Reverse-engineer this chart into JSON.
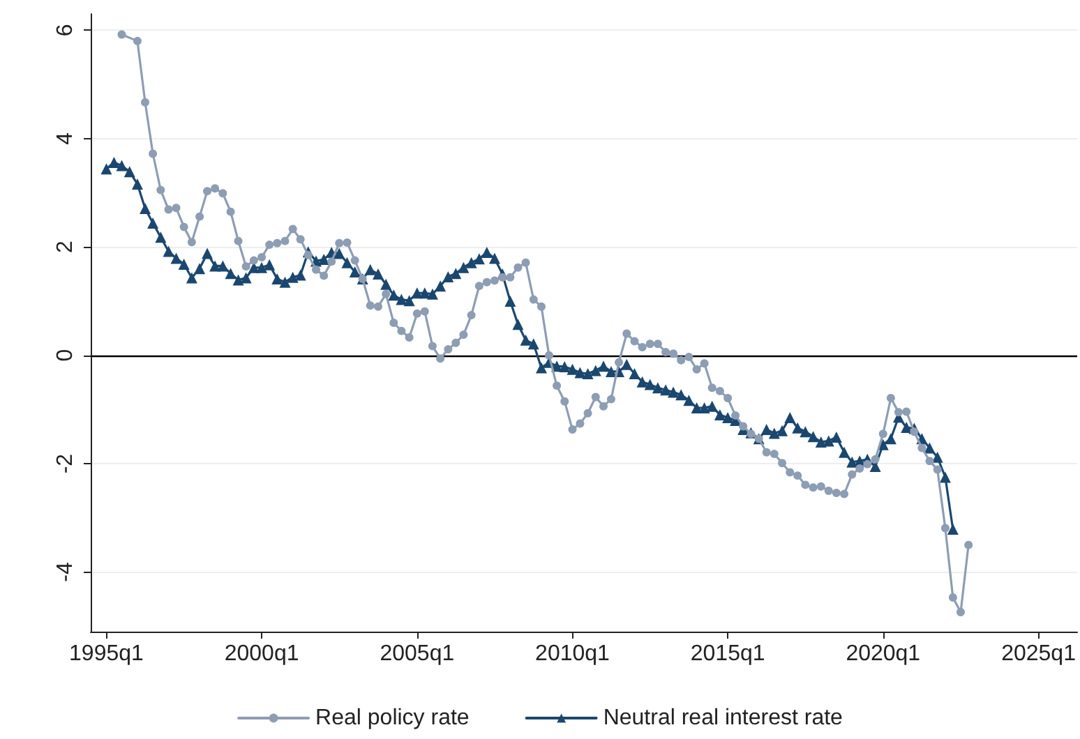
{
  "chart_data": {
    "type": "line",
    "xlim": [
      "1994-07",
      "2026-04"
    ],
    "ylim": [
      -5.1,
      6.3
    ],
    "xticks": [
      {
        "value": "1995-01",
        "label": "1995q1"
      },
      {
        "value": "2000-01",
        "label": "2000q1"
      },
      {
        "value": "2005-01",
        "label": "2005q1"
      },
      {
        "value": "2010-01",
        "label": "2010q1"
      },
      {
        "value": "2015-01",
        "label": "2015q1"
      },
      {
        "value": "2020-01",
        "label": "2020q1"
      },
      {
        "value": "2025-01",
        "label": "2025q1"
      }
    ],
    "yticks": [
      -4,
      -2,
      0,
      2,
      4,
      6
    ],
    "grid": "y",
    "legend": "bottom",
    "ref_lines": [
      {
        "axis": "y",
        "value": 0,
        "color": "#000000"
      }
    ],
    "series": [
      {
        "name": "Real policy rate",
        "color": "#8d9db3",
        "marker": "circle",
        "x": [
          "1995-07",
          "1996-01",
          "1996-04",
          "1996-07",
          "1996-10",
          "1997-01",
          "1997-04",
          "1997-07",
          "1997-10",
          "1998-01",
          "1998-04",
          "1998-07",
          "1998-10",
          "1999-01",
          "1999-04",
          "1999-07",
          "1999-10",
          "2000-01",
          "2000-04",
          "2000-07",
          "2000-10",
          "2001-01",
          "2001-04",
          "2001-07",
          "2001-10",
          "2002-01",
          "2002-04",
          "2002-07",
          "2002-10",
          "2003-01",
          "2003-04",
          "2003-07",
          "2003-10",
          "2004-01",
          "2004-04",
          "2004-07",
          "2004-10",
          "2005-01",
          "2005-04",
          "2005-07",
          "2005-10",
          "2006-01",
          "2006-04",
          "2006-07",
          "2006-10",
          "2007-01",
          "2007-04",
          "2007-07",
          "2007-10",
          "2008-01",
          "2008-04",
          "2008-07",
          "2008-10",
          "2009-01",
          "2009-04",
          "2009-07",
          "2009-10",
          "2010-01",
          "2010-04",
          "2010-07",
          "2010-10",
          "2011-01",
          "2011-04",
          "2011-07",
          "2011-10",
          "2012-01",
          "2012-04",
          "2012-07",
          "2012-10",
          "2013-01",
          "2013-04",
          "2013-07",
          "2013-10",
          "2014-01",
          "2014-04",
          "2014-07",
          "2014-10",
          "2015-01",
          "2015-04",
          "2015-07",
          "2015-10",
          "2016-01",
          "2016-04",
          "2016-07",
          "2016-10",
          "2017-01",
          "2017-04",
          "2017-07",
          "2017-10",
          "2018-01",
          "2018-04",
          "2018-07",
          "2018-10",
          "2019-01",
          "2019-04",
          "2019-07",
          "2019-10",
          "2020-01",
          "2020-04",
          "2020-07",
          "2020-10",
          "2021-01",
          "2021-04",
          "2021-07",
          "2021-10",
          "2022-01",
          "2022-04",
          "2022-07",
          "2022-10"
        ],
        "values": [
          5.92,
          5.8,
          4.67,
          3.72,
          3.05,
          2.69,
          2.72,
          2.37,
          2.09,
          2.56,
          3.03,
          3.08,
          2.99,
          2.65,
          2.11,
          1.64,
          1.75,
          1.81,
          2.04,
          2.07,
          2.11,
          2.33,
          2.14,
          1.85,
          1.58,
          1.47,
          1.73,
          2.07,
          2.08,
          1.75,
          1.41,
          0.92,
          0.9,
          1.13,
          0.6,
          0.45,
          0.33,
          0.77,
          0.81,
          0.17,
          -0.06,
          0.11,
          0.23,
          0.38,
          0.74,
          1.28,
          1.35,
          1.38,
          1.44,
          1.44,
          1.62,
          1.71,
          1.03,
          0.9,
          0,
          -0.56,
          -0.85,
          -1.37,
          -1.26,
          -1.07,
          -0.77,
          -0.94,
          -0.81,
          -0.13,
          0.4,
          0.26,
          0.15,
          0.21,
          0.21,
          0.06,
          0.03,
          -0.09,
          -0.03,
          -0.26,
          -0.15,
          -0.6,
          -0.66,
          -0.79,
          -1.11,
          -1.31,
          -1.45,
          -1.54,
          -1.79,
          -1.82,
          -1.99,
          -2.16,
          -2.22,
          -2.39,
          -2.44,
          -2.42,
          -2.5,
          -2.54,
          -2.56,
          -2.2,
          -2.09,
          -2.01,
          -1.92,
          -1.45,
          -0.79,
          -1.05,
          -1.04,
          -1.41,
          -1.71,
          -1.95,
          -2.11,
          -3.19,
          -4.47,
          -4.74,
          -3.5
        ]
      },
      {
        "name": "Neutral real interest rate",
        "color": "#1a476f",
        "marker": "triangle",
        "x": [
          "1995-01",
          "1995-04",
          "1995-07",
          "1995-10",
          "1996-01",
          "1996-04",
          "1996-07",
          "1996-10",
          "1997-01",
          "1997-04",
          "1997-07",
          "1997-10",
          "1998-01",
          "1998-04",
          "1998-07",
          "1998-10",
          "1999-01",
          "1999-04",
          "1999-07",
          "1999-10",
          "2000-01",
          "2000-04",
          "2000-07",
          "2000-10",
          "2001-01",
          "2001-04",
          "2001-07",
          "2001-10",
          "2002-01",
          "2002-04",
          "2002-07",
          "2002-10",
          "2003-01",
          "2003-04",
          "2003-07",
          "2003-10",
          "2004-01",
          "2004-04",
          "2004-07",
          "2004-10",
          "2005-01",
          "2005-04",
          "2005-07",
          "2005-10",
          "2006-01",
          "2006-04",
          "2006-07",
          "2006-10",
          "2007-01",
          "2007-04",
          "2007-07",
          "2007-10",
          "2008-01",
          "2008-04",
          "2008-07",
          "2008-10",
          "2009-01",
          "2009-04",
          "2009-07",
          "2009-10",
          "2010-01",
          "2010-04",
          "2010-07",
          "2010-10",
          "2011-01",
          "2011-04",
          "2011-07",
          "2011-10",
          "2012-01",
          "2012-04",
          "2012-07",
          "2012-10",
          "2013-01",
          "2013-04",
          "2013-07",
          "2013-10",
          "2014-01",
          "2014-04",
          "2014-07",
          "2014-10",
          "2015-01",
          "2015-04",
          "2015-07",
          "2015-10",
          "2016-01",
          "2016-04",
          "2016-07",
          "2016-10",
          "2017-01",
          "2017-04",
          "2017-07",
          "2017-10",
          "2018-01",
          "2018-04",
          "2018-07",
          "2018-10",
          "2019-01",
          "2019-04",
          "2019-07",
          "2019-10",
          "2020-01",
          "2020-04",
          "2020-07",
          "2020-10",
          "2021-01",
          "2021-04",
          "2021-07",
          "2021-10",
          "2022-01",
          "2022-04"
        ],
        "values": [
          3.44,
          3.56,
          3.5,
          3.39,
          3.16,
          2.71,
          2.44,
          2.18,
          1.92,
          1.79,
          1.68,
          1.43,
          1.6,
          1.88,
          1.65,
          1.65,
          1.51,
          1.39,
          1.43,
          1.62,
          1.62,
          1.67,
          1.41,
          1.35,
          1.44,
          1.48,
          1.91,
          1.74,
          1.77,
          1.9,
          1.88,
          1.71,
          1.54,
          1.41,
          1.58,
          1.5,
          1.31,
          1.11,
          1.03,
          1.01,
          1.15,
          1.15,
          1.13,
          1.28,
          1.45,
          1.51,
          1.62,
          1.71,
          1.78,
          1.9,
          1.79,
          1.5,
          1.0,
          0.57,
          0.28,
          0.21,
          -0.23,
          -0.13,
          -0.2,
          -0.21,
          -0.26,
          -0.32,
          -0.34,
          -0.28,
          -0.2,
          -0.3,
          -0.3,
          -0.17,
          -0.34,
          -0.49,
          -0.54,
          -0.6,
          -0.64,
          -0.68,
          -0.73,
          -0.83,
          -0.97,
          -0.97,
          -0.94,
          -1.1,
          -1.15,
          -1.2,
          -1.37,
          -1.43,
          -1.54,
          -1.37,
          -1.44,
          -1.39,
          -1.15,
          -1.34,
          -1.41,
          -1.5,
          -1.6,
          -1.58,
          -1.51,
          -1.79,
          -1.97,
          -1.95,
          -1.92,
          -2.05,
          -1.65,
          -1.54,
          -1.14,
          -1.33,
          -1.35,
          -1.54,
          -1.71,
          -1.88,
          -2.25,
          -3.21
        ]
      }
    ]
  }
}
